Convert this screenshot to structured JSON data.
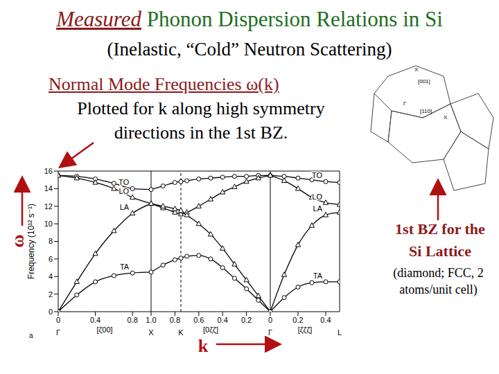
{
  "slide": {
    "title_prefix": "Measured",
    "title": "Phonon Dispersion Relations in Si",
    "subtitle": "(Inelastic, “Cold” Neutron Scattering)",
    "caption_heading": "Normal Mode Frequencies ω(k)",
    "caption": [
      "Plotted for k along high symmetry",
      "directions in the 1st BZ."
    ],
    "bz_caption": [
      "1st BZ for the",
      "Si Lattice"
    ],
    "bz_note": [
      "(diamond; FCC, 2",
      "atoms/unit cell)"
    ],
    "bz_labels": [
      "X",
      "[001]",
      "Γ",
      "[110]",
      "X"
    ],
    "axis_symbols": {
      "y": "ω",
      "x": "k"
    },
    "panel_label": "a"
  },
  "chart_data": [
    {
      "type": "line",
      "ylabel": "Frequency (10¹² s⁻¹)",
      "xlabel": "[ζ00]",
      "x": [
        0,
        0.2,
        0.4,
        0.6,
        0.8,
        1
      ],
      "xlim": [
        0,
        1
      ],
      "xticks": [
        0,
        0.4,
        0.8
      ],
      "ylim": [
        0,
        16
      ],
      "yticks": [
        0,
        2,
        4,
        6,
        8,
        10,
        12,
        14,
        16
      ],
      "points": [
        {
          "label": "Γ",
          "x": 0
        }
      ],
      "series": [
        {
          "name": "TO",
          "color": "#000000",
          "marker": "circle",
          "values": [
            15.5,
            15.4,
            15.1,
            14.6,
            14.0,
            13.9
          ]
        },
        {
          "name": "LO",
          "color": "#000000",
          "marker": "triangle",
          "values": [
            15.5,
            15.2,
            14.7,
            14.0,
            13.0,
            12.3
          ]
        },
        {
          "name": "LA",
          "color": "#000000",
          "marker": "triangle",
          "values": [
            0,
            3.4,
            6.6,
            9.2,
            11.2,
            12.3
          ]
        },
        {
          "name": "TA",
          "color": "#000000",
          "marker": "circle",
          "values": [
            0,
            1.9,
            3.4,
            4.1,
            4.4,
            4.5
          ]
        }
      ]
    },
    {
      "type": "line",
      "xlabel": "[0ζζ]",
      "x": [
        1,
        0.9,
        0.8,
        0.75,
        0.7,
        0.6,
        0.5,
        0.4,
        0.3,
        0.2,
        0.1,
        0
      ],
      "xlim": [
        1,
        0
      ],
      "xticks": [
        {
          "value": 1,
          "label": "1.0"
        },
        0.8,
        0.6,
        0.4,
        0.2
      ],
      "ylim": [
        0,
        16
      ],
      "yticks": [
        0,
        2,
        4,
        6,
        8,
        10,
        12,
        14,
        16
      ],
      "tick_labels": "x",
      "points": [
        {
          "label": "X",
          "x": 1
        },
        {
          "label": "K",
          "x": 0.75
        }
      ],
      "series": [
        {
          "color": "#000000",
          "marker": "circle",
          "values": [
            13.9,
            14.3,
            14.7,
            14.8,
            14.9,
            15.1,
            15.2,
            15.3,
            15.4,
            15.4,
            15.5,
            15.5
          ]
        },
        {
          "color": "#000000",
          "marker": "triangle",
          "values": [
            12.3,
            11.8,
            11.3,
            11.1,
            11.3,
            12.0,
            12.8,
            13.6,
            14.2,
            14.8,
            15.2,
            15.5
          ]
        },
        {
          "color": "#000000",
          "marker": "triangle",
          "values": [
            12.3,
            12.0,
            11.7,
            11.5,
            11.0,
            10.0,
            8.8,
            7.2,
            5.4,
            3.6,
            1.8,
            0
          ]
        },
        {
          "color": "#000000",
          "marker": "circle",
          "values": [
            4.5,
            5.3,
            5.9,
            6.1,
            6.3,
            6.4,
            6.0,
            5.0,
            3.8,
            2.6,
            1.3,
            0
          ]
        }
      ]
    },
    {
      "type": "line",
      "xlabel": "[ζζζ]",
      "x": [
        0,
        0.1,
        0.2,
        0.3,
        0.4,
        0.5
      ],
      "xlim": [
        0,
        0.5
      ],
      "xticks": [
        0,
        0.2,
        0.4
      ],
      "ylim": [
        0,
        16
      ],
      "yticks": [
        0,
        2,
        4,
        6,
        8,
        10,
        12,
        14,
        16
      ],
      "tick_labels": "x",
      "points": [
        {
          "label": "Γ",
          "x": 0
        },
        {
          "label": "L",
          "x": 0.5
        }
      ],
      "series": [
        {
          "name": "TO",
          "color": "#000000",
          "marker": "circle",
          "values": [
            15.5,
            15.4,
            15.2,
            15.0,
            14.8,
            14.7
          ]
        },
        {
          "name": "LO",
          "color": "#000000",
          "marker": "triangle",
          "values": [
            15.5,
            14.9,
            14.0,
            13.0,
            12.4,
            12.2
          ]
        },
        {
          "name": "LA",
          "color": "#000000",
          "marker": "triangle",
          "values": [
            0,
            4.2,
            7.6,
            9.8,
            11.0,
            11.3
          ]
        },
        {
          "name": "TA",
          "color": "#000000",
          "marker": "circle",
          "values": [
            0,
            1.6,
            2.8,
            3.3,
            3.4,
            3.4
          ]
        }
      ]
    }
  ]
}
